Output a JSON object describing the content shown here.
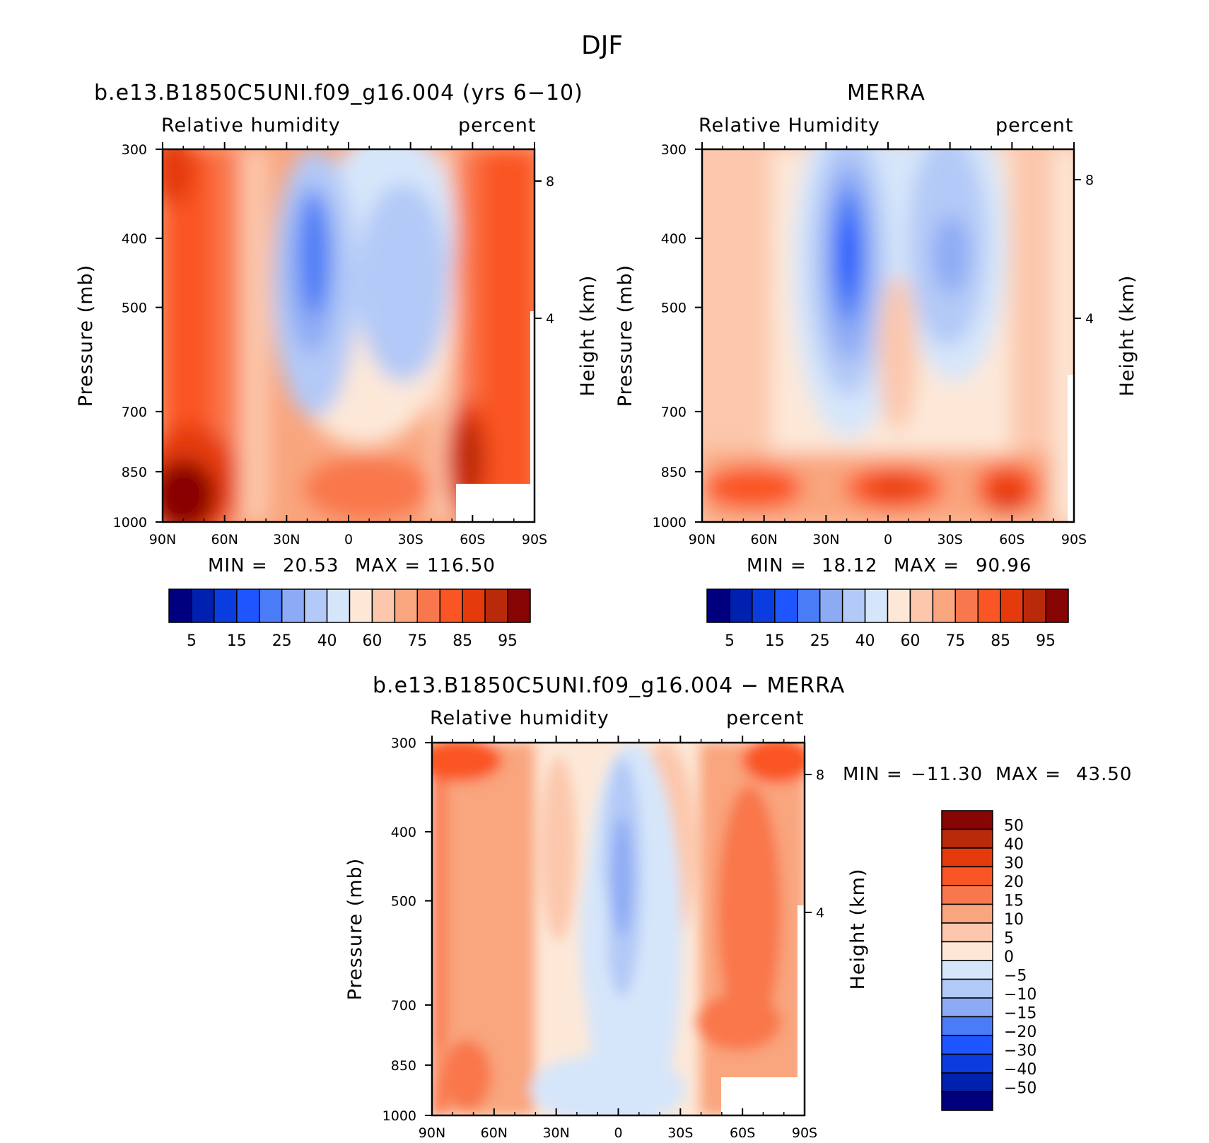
{
  "suptitle": "DJF",
  "panels": [
    {
      "title": "b.e13.B1850C5UNI.f09_g16.004 (yrs 6−10)",
      "left_label": "Relative humidity",
      "right_label": "percent",
      "ylabel": "Pressure (mb)",
      "ylabel_right": "Height (km)",
      "x_ticks": [
        "90N",
        "60N",
        "30N",
        "0",
        "30S",
        "60S",
        "90S"
      ],
      "y_ticks": [
        "300",
        "400",
        "500",
        "700",
        "850",
        "1000"
      ],
      "height_ticks": [
        "8",
        "4"
      ],
      "min_label": "MIN =",
      "min_value": "20.53",
      "max_label": "MAX =",
      "max_value": "116.50"
    },
    {
      "title": "MERRA",
      "left_label": "Relative Humidity",
      "right_label": "percent",
      "ylabel": "Pressure (mb)",
      "ylabel_right": "Height (km)",
      "x_ticks": [
        "90N",
        "60N",
        "30N",
        "0",
        "30S",
        "60S",
        "90S"
      ],
      "y_ticks": [
        "300",
        "400",
        "500",
        "700",
        "850",
        "1000"
      ],
      "height_ticks": [
        "8",
        "4"
      ],
      "min_label": "MIN =",
      "min_value": "18.12",
      "max_label": "MAX =",
      "max_value": "90.96"
    },
    {
      "title": "b.e13.B1850C5UNI.f09_g16.004 − MERRA",
      "left_label": "Relative humidity",
      "right_label": "percent",
      "ylabel": "Pressure (mb)",
      "ylabel_right": "Height (km)",
      "x_ticks": [
        "90N",
        "60N",
        "30N",
        "0",
        "30S",
        "60S",
        "90S"
      ],
      "y_ticks": [
        "300",
        "400",
        "500",
        "700",
        "850",
        "1000"
      ],
      "height_ticks": [
        "8",
        "4"
      ],
      "min_label": "MIN =",
      "min_value": "−11.30",
      "max_label": "MAX =",
      "max_value": "43.50"
    }
  ],
  "colorbar_abs": {
    "labels": [
      "5",
      "15",
      "25",
      "40",
      "60",
      "75",
      "85",
      "95"
    ],
    "colors": [
      "#00007f",
      "#0020b0",
      "#0a3ce0",
      "#1f55ff",
      "#4a7cf7",
      "#8daaf4",
      "#b3c9f7",
      "#d6e6fa",
      "#fde8d8",
      "#fcc7ac",
      "#f9a57e",
      "#f9774c",
      "#fa5524",
      "#e43a0c",
      "#b92a0a",
      "#880505"
    ]
  },
  "colorbar_diff": {
    "labels": [
      "50",
      "40",
      "30",
      "20",
      "15",
      "10",
      "5",
      "0",
      "−5",
      "−10",
      "−15",
      "−20",
      "−30",
      "−40",
      "−50"
    ],
    "colors": [
      "#880505",
      "#b92a0a",
      "#e43a0c",
      "#fa5524",
      "#f9774c",
      "#f9a57e",
      "#fcc7ac",
      "#fde8d8",
      "#d6e6fa",
      "#b3c9f7",
      "#8daaf4",
      "#4a7cf7",
      "#1f55ff",
      "#0a3ce0",
      "#0020b0",
      "#00007f"
    ]
  },
  "chart_data": [
    {
      "type": "heatmap",
      "title": "b.e13.B1850C5UNI.f09_g16.004 (yrs 6−10)",
      "subtitle_left": "Relative humidity",
      "subtitle_right": "percent",
      "xlabel": "",
      "ylabel": "Pressure (mb)",
      "ylabel_right": "Height (km)",
      "x": [
        "90N",
        "60N",
        "30N",
        "0",
        "30S",
        "60S",
        "90S"
      ],
      "xlim": [
        90,
        -90
      ],
      "y": [
        300,
        400,
        500,
        700,
        850,
        1000
      ],
      "ylim": [
        1000,
        300
      ],
      "yscale": "log",
      "levels": [
        5,
        10,
        15,
        20,
        25,
        30,
        40,
        50,
        60,
        70,
        75,
        80,
        85,
        90,
        95
      ],
      "min": 20.53,
      "max": 116.5
    },
    {
      "type": "heatmap",
      "title": "MERRA",
      "subtitle_left": "Relative Humidity",
      "subtitle_right": "percent",
      "xlabel": "",
      "ylabel": "Pressure (mb)",
      "ylabel_right": "Height (km)",
      "x": [
        "90N",
        "60N",
        "30N",
        "0",
        "30S",
        "60S",
        "90S"
      ],
      "xlim": [
        90,
        -90
      ],
      "y": [
        300,
        400,
        500,
        700,
        850,
        1000
      ],
      "ylim": [
        1000,
        300
      ],
      "yscale": "log",
      "levels": [
        5,
        10,
        15,
        20,
        25,
        30,
        40,
        50,
        60,
        70,
        75,
        80,
        85,
        90,
        95
      ],
      "min": 18.12,
      "max": 90.96
    },
    {
      "type": "heatmap",
      "title": "b.e13.B1850C5UNI.f09_g16.004 − MERRA",
      "subtitle_left": "Relative humidity",
      "subtitle_right": "percent",
      "xlabel": "",
      "ylabel": "Pressure (mb)",
      "ylabel_right": "Height (km)",
      "x": [
        "90N",
        "60N",
        "30N",
        "0",
        "30S",
        "60S",
        "90S"
      ],
      "xlim": [
        90,
        -90
      ],
      "y": [
        300,
        400,
        500,
        700,
        850,
        1000
      ],
      "ylim": [
        1000,
        300
      ],
      "yscale": "log",
      "levels": [
        -50,
        -40,
        -30,
        -20,
        -15,
        -10,
        -5,
        0,
        5,
        10,
        15,
        20,
        30,
        40,
        50
      ],
      "min": -11.3,
      "max": 43.5
    }
  ]
}
